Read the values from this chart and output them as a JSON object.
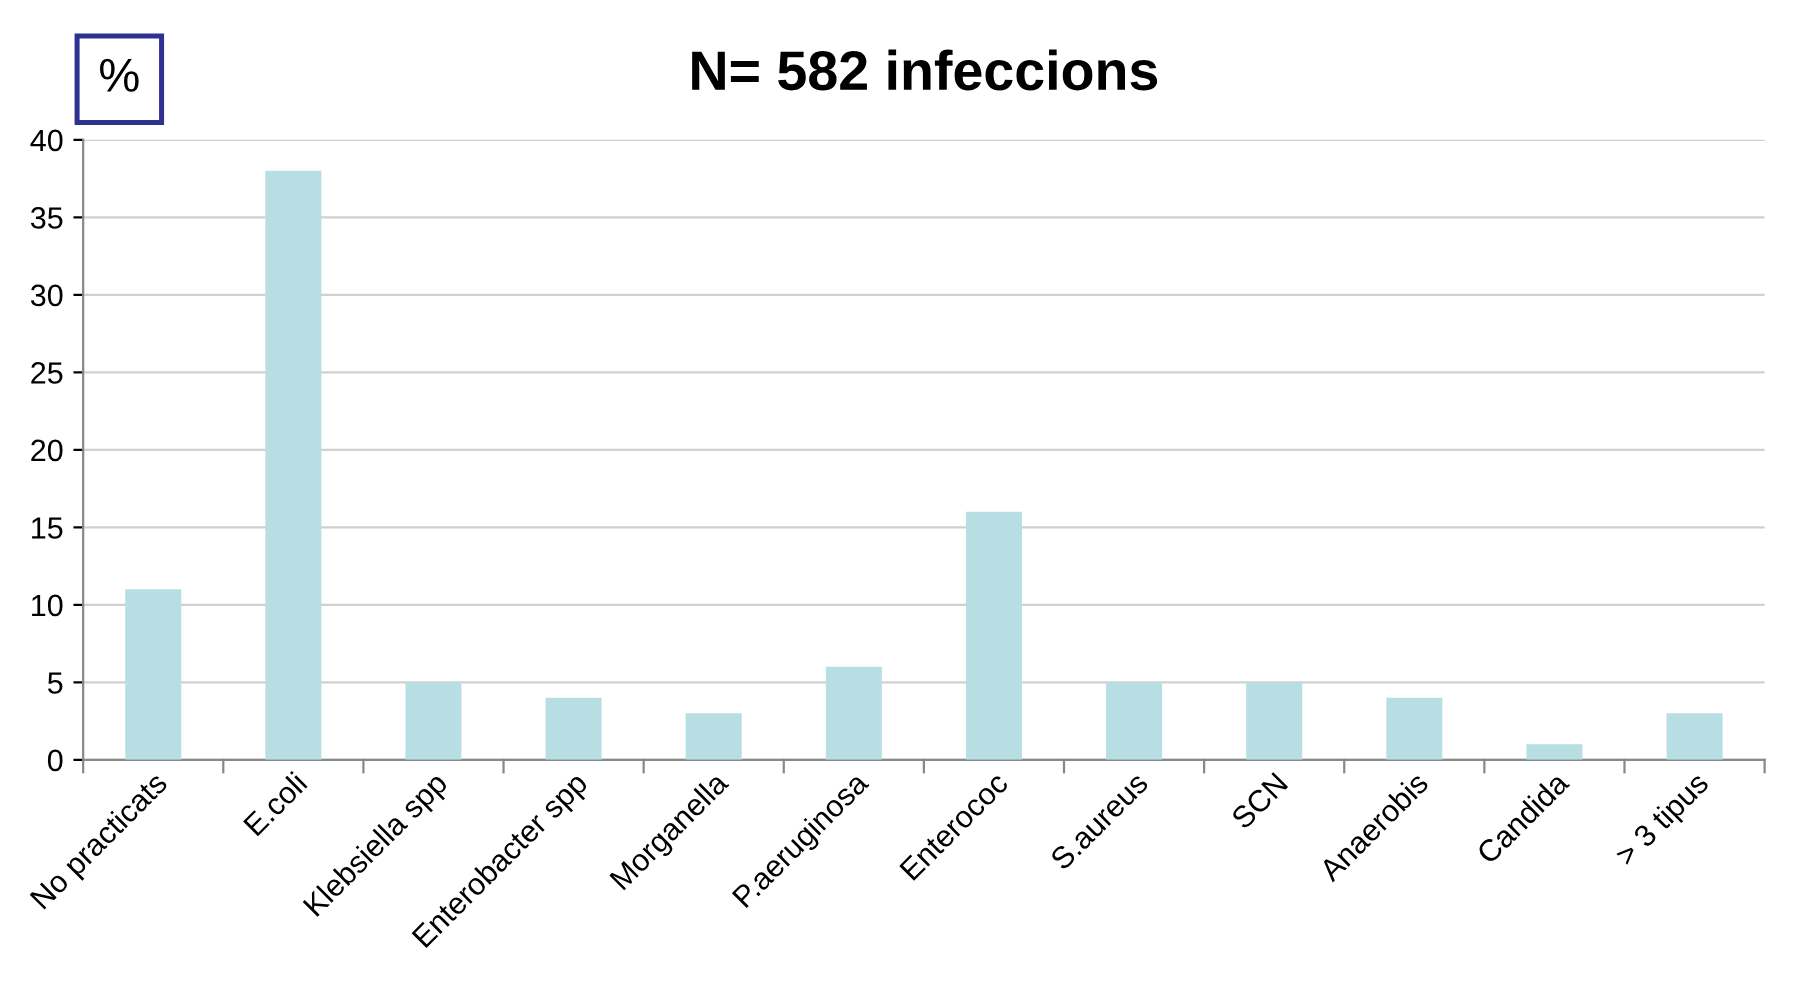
{
  "chart_data": {
    "type": "bar",
    "title": "N= 582 infeccions",
    "ylabel": "%",
    "categories": [
      "No practicats",
      "E.coli",
      "Klebsiella spp",
      "Enterobacter spp",
      "Morganella",
      "P.aeruginosa",
      "Enterococ",
      "S.aureus",
      "SCN",
      "Anaerobis",
      "Candida",
      "> 3 tipus"
    ],
    "values": [
      11,
      38,
      5,
      4,
      3,
      6,
      16,
      5,
      5,
      4,
      1,
      3
    ],
    "color": "#b7dfe3",
    "ylim": [
      0,
      40
    ],
    "yticks": [
      0,
      5,
      10,
      15,
      20,
      25,
      30,
      35,
      40
    ],
    "grid": "y"
  }
}
